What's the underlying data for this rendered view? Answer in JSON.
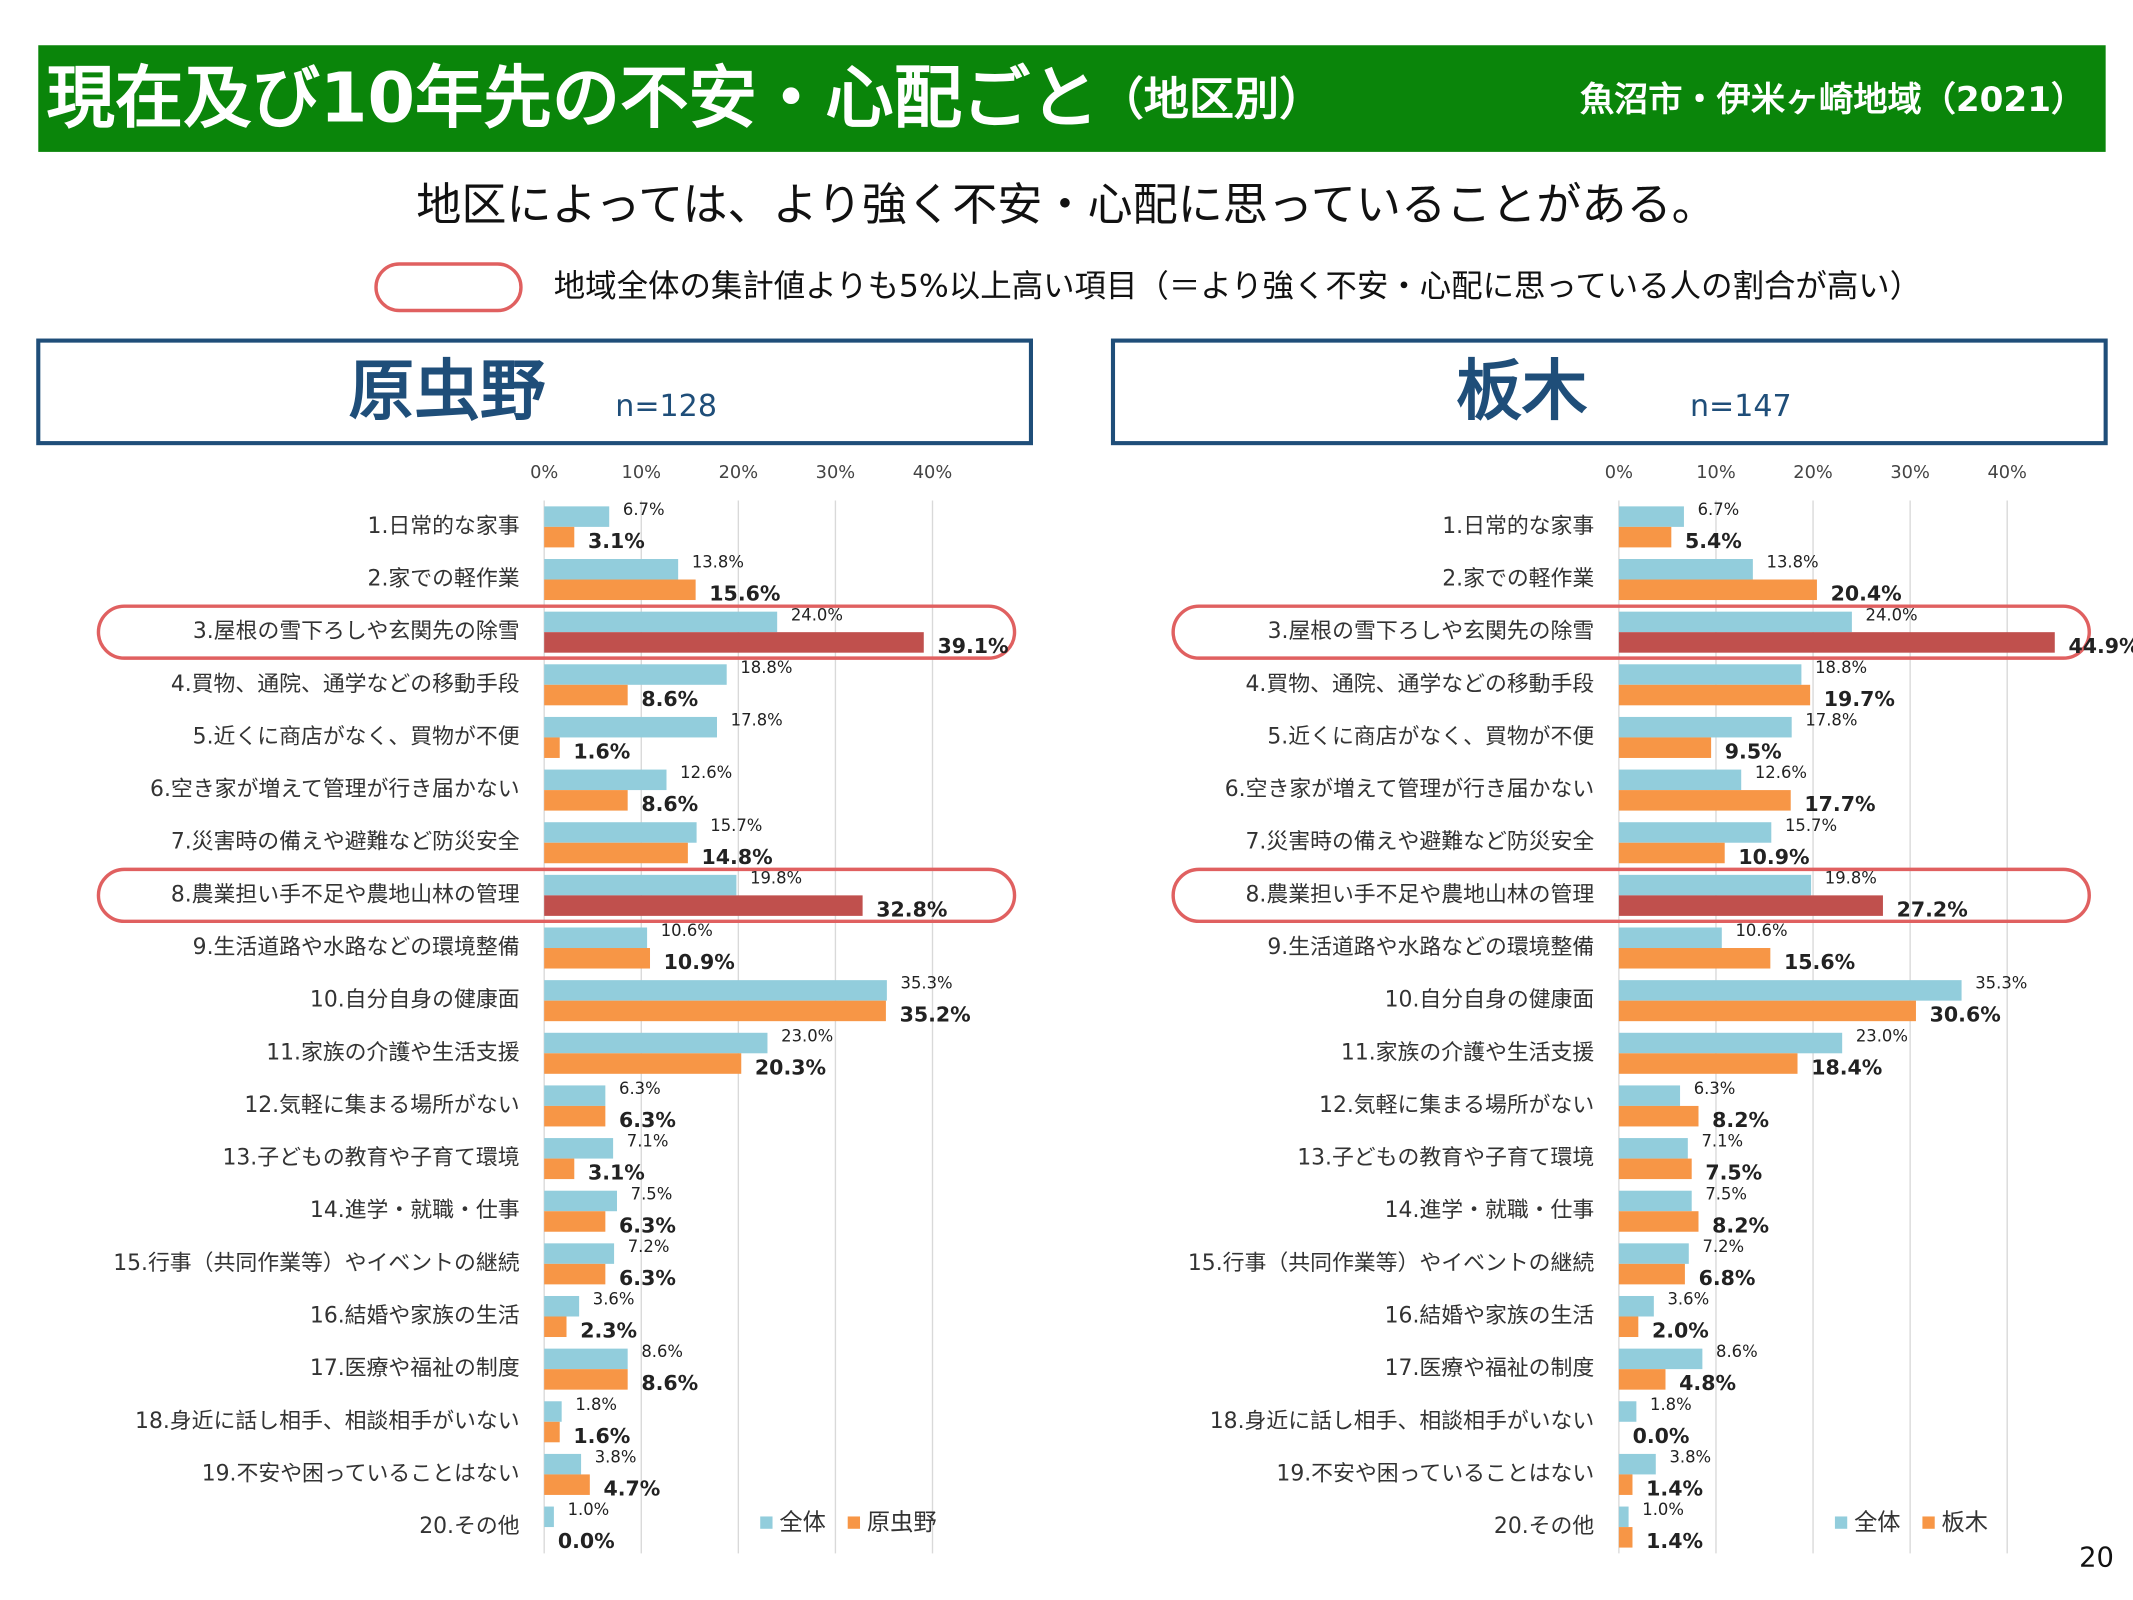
{
  "header": {
    "title": "現在及び10年先の不安・心配ごと",
    "title_suffix": "（地区別）",
    "region": "魚沼市・伊米ヶ崎地域（2021）"
  },
  "message": "地区によっては、より強く不安・心配に思っていることがある。",
  "legend_note": "地域全体の集計値よりも5%以上高い項目（＝より強く不安・心配に思っている人の割合が高い）",
  "page_number": "20",
  "chart_data": [
    {
      "type": "bar",
      "orientation": "horizontal",
      "title": "原虫野",
      "n_label": "n=128",
      "categories": [
        "1.日常的な家事",
        "2.家での軽作業",
        "3.屋根の雪下ろしや玄関先の除雪",
        "4.買物、通院、通学などの移動手段",
        "5.近くに商店がなく、買物が不便",
        "6.空き家が増えて管理が行き届かない",
        "7.災害時の備えや避難など防災安全",
        "8.農業担い手不足や農地山林の管理",
        "9.生活道路や水路などの環境整備",
        "10.自分自身の健康面",
        "11.家族の介護や生活支援",
        "12.気軽に集まる場所がない",
        "13.子どもの教育や子育て環境",
        "14.進学・就職・仕事",
        "15.行事（共同作業等）やイベントの継続",
        "16.結婚や家族の生活",
        "17.医療や福祉の制度",
        "18.身近に話し相手、相談相手がいない",
        "19.不安や困っていることはない",
        "20.その他"
      ],
      "series": [
        {
          "name": "全体",
          "color": "#92cddc",
          "values": [
            6.7,
            13.8,
            24.0,
            18.8,
            17.8,
            12.6,
            15.7,
            19.8,
            10.6,
            35.3,
            23.0,
            6.3,
            7.1,
            7.5,
            7.2,
            3.6,
            8.6,
            1.8,
            3.8,
            1.0
          ],
          "value_labels": [
            "6.7%",
            "13.8%",
            "24.0%",
            "18.8%",
            "17.8%",
            "12.6%",
            "15.7%",
            "19.8%",
            "10.6%",
            "35.3%",
            "23.0%",
            "6.3%",
            "7.1%",
            "7.5%",
            "7.2%",
            "3.6%",
            "8.6%",
            "1.8%",
            "3.8%",
            "1.0%"
          ]
        },
        {
          "name": "原虫野",
          "color": "#f79646",
          "values": [
            3.1,
            15.6,
            39.1,
            8.6,
            1.6,
            8.6,
            14.8,
            32.8,
            10.9,
            35.2,
            20.3,
            6.3,
            3.1,
            6.3,
            6.3,
            2.3,
            8.6,
            1.6,
            4.7,
            0.0
          ],
          "value_labels": [
            "3.1%",
            "15.6%",
            "39.1%",
            "8.6%",
            "1.6%",
            "8.6%",
            "14.8%",
            "32.8%",
            "10.9%",
            "35.2%",
            "20.3%",
            "6.3%",
            "3.1%",
            "6.3%",
            "6.3%",
            "2.3%",
            "8.6%",
            "1.6%",
            "4.7%",
            "0.0%"
          ]
        }
      ],
      "highlighted": [
        2,
        7
      ],
      "highlight_color": "#c0504d",
      "xlim": [
        0,
        50
      ],
      "xticks": [
        {
          "value": 0,
          "label": "0%"
        },
        {
          "value": 10,
          "label": "10%"
        },
        {
          "value": 20,
          "label": "20%"
        },
        {
          "value": 30,
          "label": "30%"
        },
        {
          "value": 40,
          "label": "40%"
        }
      ],
      "grid": true
    },
    {
      "type": "bar",
      "orientation": "horizontal",
      "title": "板木",
      "n_label": "n=147",
      "categories": [
        "1.日常的な家事",
        "2.家での軽作業",
        "3.屋根の雪下ろしや玄関先の除雪",
        "4.買物、通院、通学などの移動手段",
        "5.近くに商店がなく、買物が不便",
        "6.空き家が増えて管理が行き届かない",
        "7.災害時の備えや避難など防災安全",
        "8.農業担い手不足や農地山林の管理",
        "9.生活道路や水路などの環境整備",
        "10.自分自身の健康面",
        "11.家族の介護や生活支援",
        "12.気軽に集まる場所がない",
        "13.子どもの教育や子育て環境",
        "14.進学・就職・仕事",
        "15.行事（共同作業等）やイベントの継続",
        "16.結婚や家族の生活",
        "17.医療や福祉の制度",
        "18.身近に話し相手、相談相手がいない",
        "19.不安や困っていることはない",
        "20.その他"
      ],
      "series": [
        {
          "name": "全体",
          "color": "#92cddc",
          "values": [
            6.7,
            13.8,
            24.0,
            18.8,
            17.8,
            12.6,
            15.7,
            19.8,
            10.6,
            35.3,
            23.0,
            6.3,
            7.1,
            7.5,
            7.2,
            3.6,
            8.6,
            1.8,
            3.8,
            1.0
          ],
          "value_labels": [
            "6.7%",
            "13.8%",
            "24.0%",
            "18.8%",
            "17.8%",
            "12.6%",
            "15.7%",
            "19.8%",
            "10.6%",
            "35.3%",
            "23.0%",
            "6.3%",
            "7.1%",
            "7.5%",
            "7.2%",
            "3.6%",
            "8.6%",
            "1.8%",
            "3.8%",
            "1.0%"
          ]
        },
        {
          "name": "板木",
          "color": "#f79646",
          "values": [
            5.4,
            20.4,
            44.9,
            19.7,
            9.5,
            17.7,
            10.9,
            27.2,
            15.6,
            30.6,
            18.4,
            8.2,
            7.5,
            8.2,
            6.8,
            2.0,
            4.8,
            0.0,
            1.4,
            1.4
          ],
          "value_labels": [
            "5.4%",
            "20.4%",
            "44.9%",
            "19.7%",
            "9.5%",
            "17.7%",
            "10.9%",
            "27.2%",
            "15.6%",
            "30.6%",
            "18.4%",
            "8.2%",
            "7.5%",
            "8.2%",
            "6.8%",
            "2.0%",
            "4.8%",
            "0.0%",
            "1.4%",
            "1.4%"
          ]
        }
      ],
      "highlighted": [
        2,
        7
      ],
      "highlight_color": "#c0504d",
      "xlim": [
        0,
        50
      ],
      "xticks": [
        {
          "value": 0,
          "label": "0%"
        },
        {
          "value": 10,
          "label": "10%"
        },
        {
          "value": 20,
          "label": "20%"
        },
        {
          "value": 30,
          "label": "30%"
        },
        {
          "value": 40,
          "label": "40%"
        }
      ],
      "grid": true
    }
  ]
}
